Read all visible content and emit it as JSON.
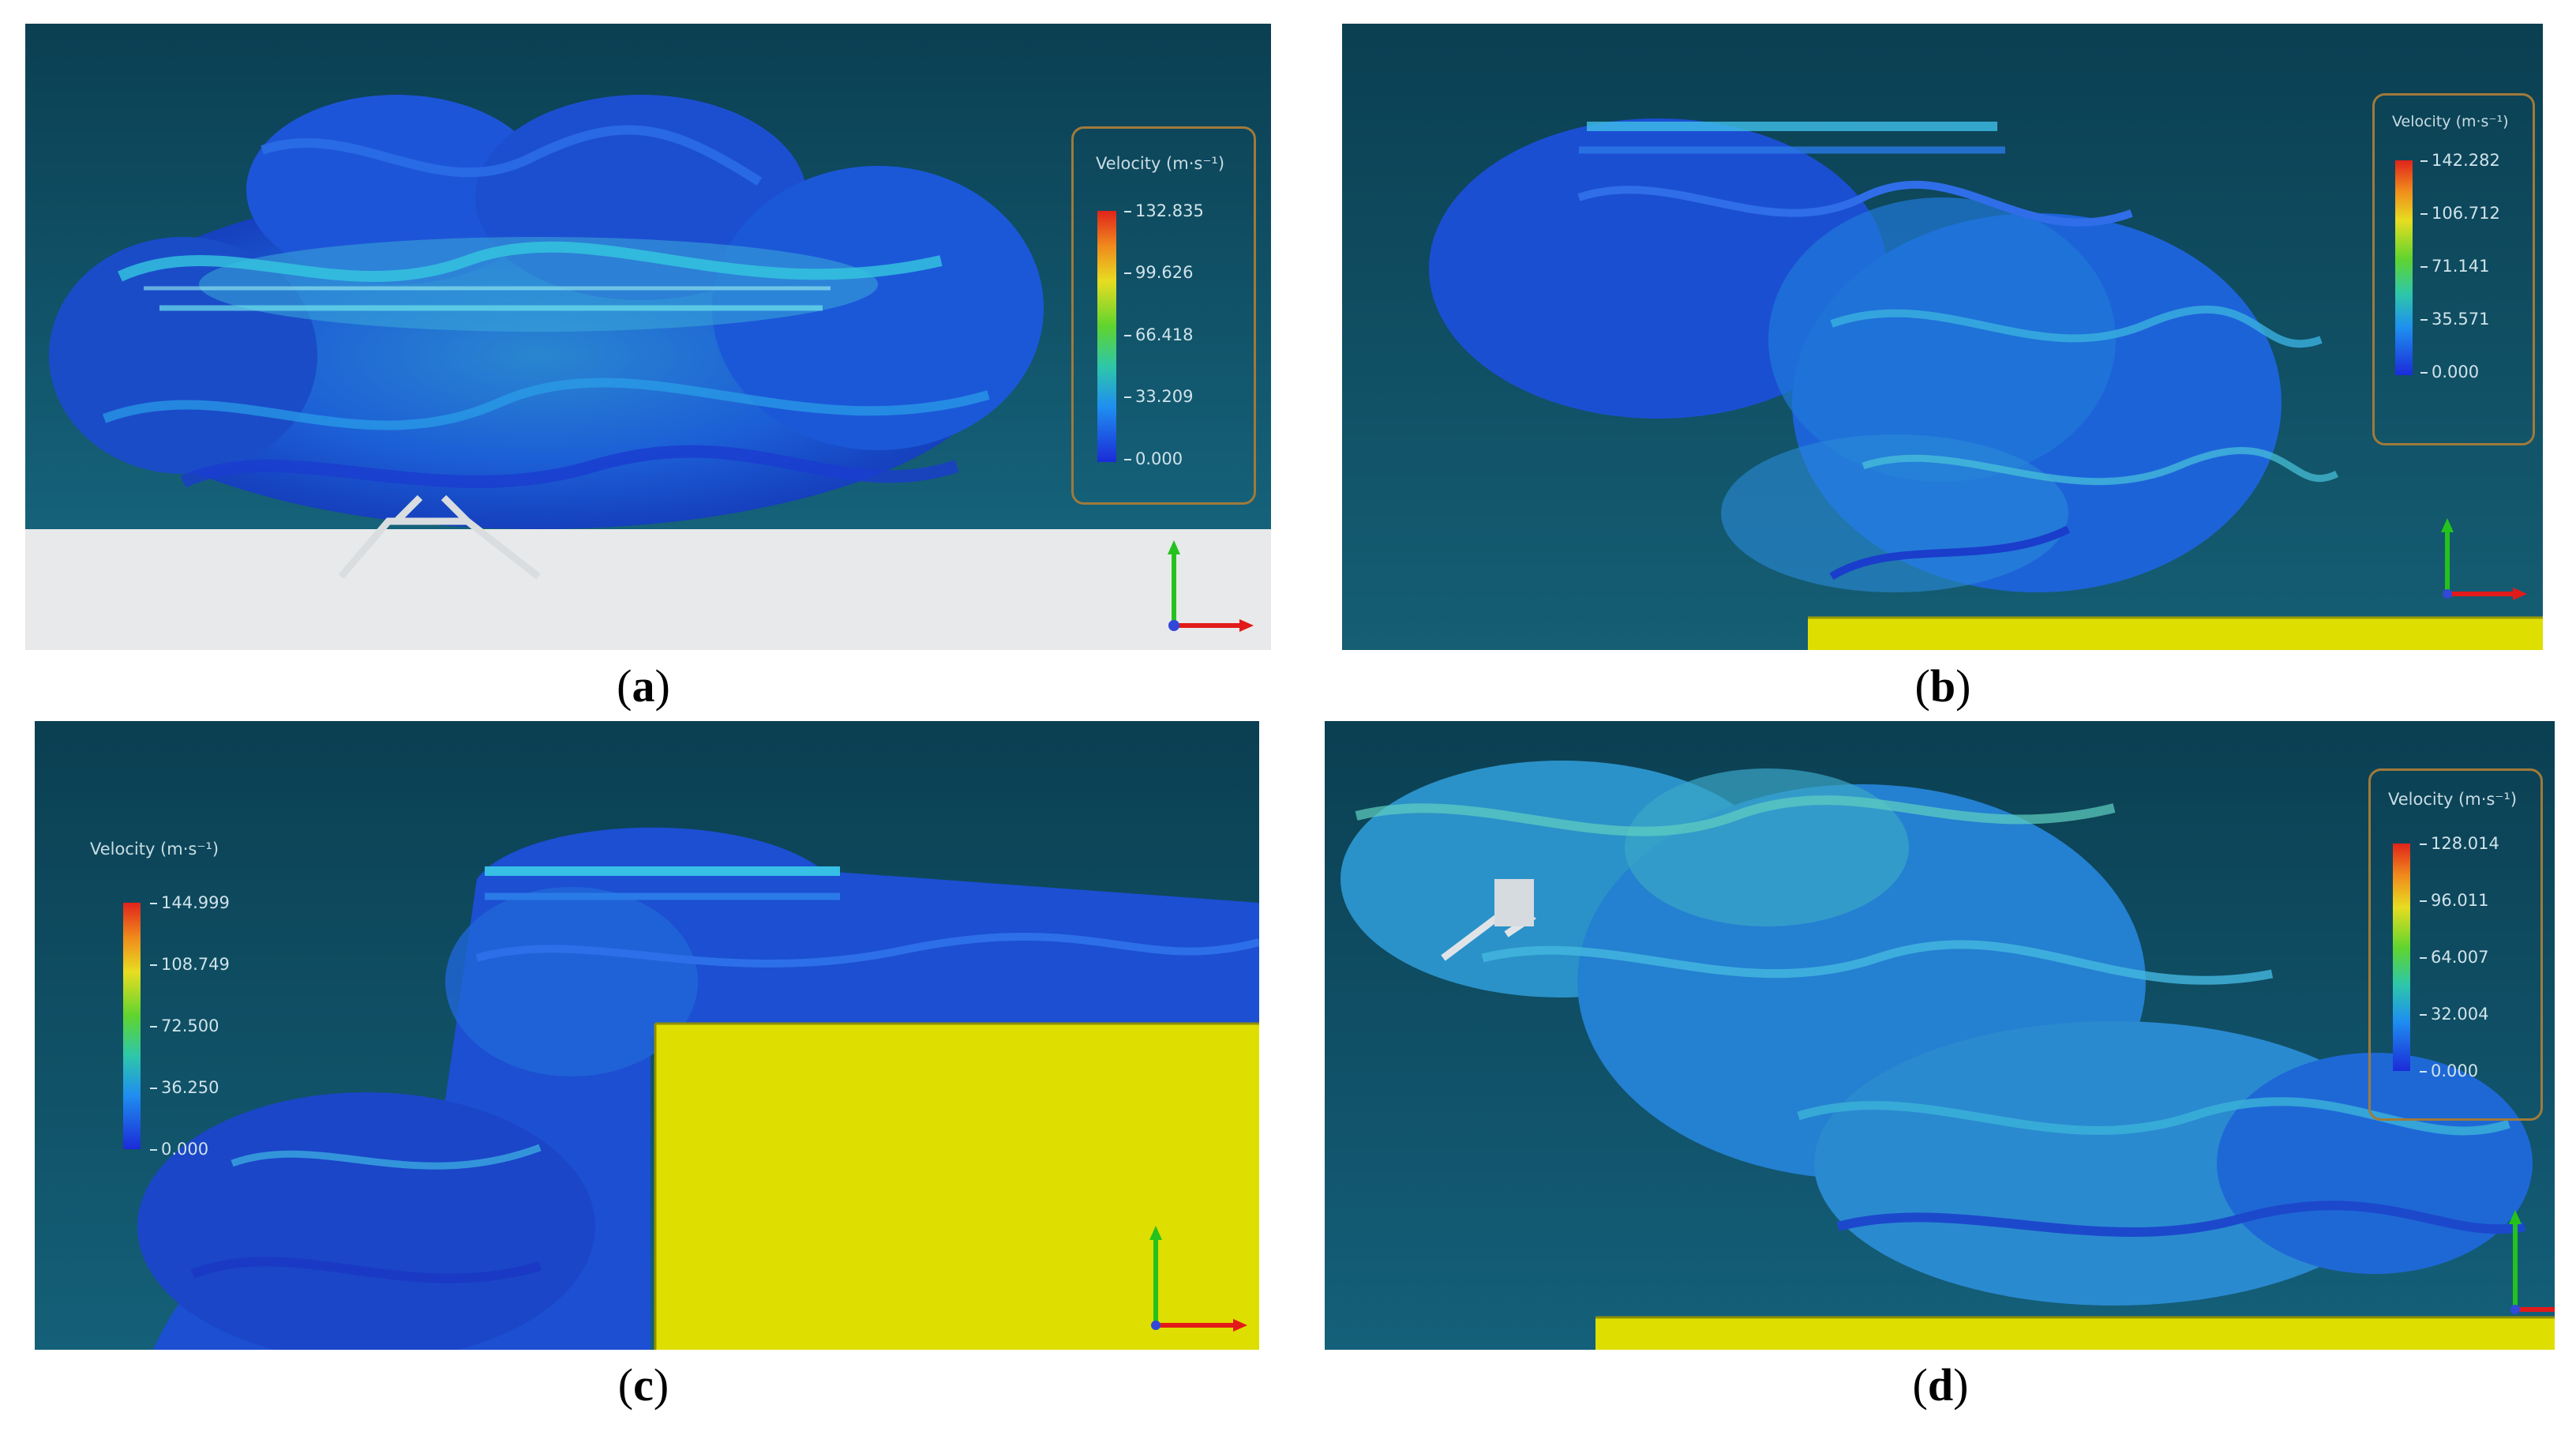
{
  "panels": [
    {
      "id": "a",
      "caption": "a",
      "legend": {
        "title": "Velocity (m·s⁻¹)",
        "ticks": [
          "132.835",
          "99.626",
          "66.418",
          "33.209",
          "0.000"
        ]
      },
      "axes": {
        "x": "x",
        "y": "y"
      },
      "colors": {
        "background": "#0f4a5c",
        "ground": "#e8e9ea",
        "vortex": "#1f5fe0"
      }
    },
    {
      "id": "b",
      "caption": "b",
      "legend": {
        "title": "Velocity (m·s⁻¹)",
        "ticks": [
          "142.282",
          "106.712",
          "71.141",
          "35.571",
          "0.000"
        ]
      },
      "axes": {
        "x": "x",
        "y": "y"
      },
      "colors": {
        "background": "#0f4a5c",
        "ground": "#dede00",
        "vortex": "#1f5fe0"
      }
    },
    {
      "id": "c",
      "caption": "c",
      "legend": {
        "title": "Velocity (m·s⁻¹)",
        "ticks": [
          "144.999",
          "108.749",
          "72.500",
          "36.250",
          "0.000"
        ]
      },
      "axes": {
        "x": "x",
        "y": "y"
      },
      "colors": {
        "background": "#0f4a5c",
        "ground": "#dede00",
        "vortex": "#1f5fe0"
      }
    },
    {
      "id": "d",
      "caption": "d",
      "legend": {
        "title": "Velocity (m·s⁻¹)",
        "ticks": [
          "128.014",
          "96.011",
          "64.007",
          "32.004",
          "0.000"
        ]
      },
      "axes": {
        "x": "x",
        "y": "y"
      },
      "colors": {
        "background": "#0f4a5c",
        "ground": "#dede00",
        "vortex": "#2a8fd8"
      }
    }
  ]
}
